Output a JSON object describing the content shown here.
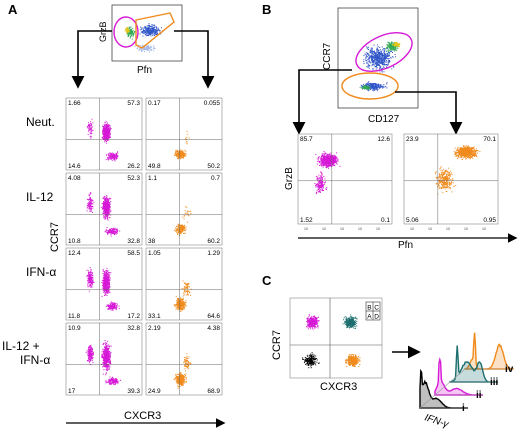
{
  "panels": {
    "A": {
      "label": "A",
      "gate_plot": {
        "ylabel": "GrzB",
        "xlabel": "Pfn"
      },
      "row_labels": [
        "Neut.",
        "IL-12",
        "IFN-α",
        "IL-12 +",
        "IFN-α"
      ],
      "axis_ylabel": "CCR7",
      "axis_xlabel": "CXCR3",
      "magenta_quadrants": [
        [
          "1.66",
          "57.3",
          "14.6",
          "26.2"
        ],
        [
          "4.08",
          "52.3",
          "10.8",
          "32.8"
        ],
        [
          "12.4",
          "58.5",
          "11.8",
          "17.2"
        ],
        [
          "10.9",
          "32.8",
          "17",
          "39.3"
        ]
      ],
      "orange_quadrants": [
        [
          "0.17",
          "0.055",
          "49.8",
          "50.2"
        ],
        [
          "1.1",
          "0.7",
          "38",
          "60.2"
        ],
        [
          "1.05",
          "1.29",
          "33.1",
          "64.6"
        ],
        [
          "2.19",
          "4.38",
          "24.9",
          "68.9"
        ]
      ],
      "colors": {
        "magenta": "#d61ad6",
        "orange": "#f08a1c"
      }
    },
    "B": {
      "label": "B",
      "gate_plot": {
        "ylabel": "CCR7",
        "xlabel": "CD127"
      },
      "sub_ylabel": "GrzB",
      "sub_xlabel": "Pfn",
      "magenta_quadrants": [
        "85.7",
        "12.6",
        "1.52",
        "0.1"
      ],
      "orange_quadrants": [
        "23.9",
        "70.1",
        "5.06",
        "0.95"
      ],
      "ticks": [
        "10",
        "10",
        "10",
        "10",
        "10"
      ]
    },
    "C": {
      "label": "C",
      "ylabel": "CCR7",
      "xlabel": "CXCR3",
      "quadrant_letters": [
        "B",
        "C",
        "A",
        "D"
      ],
      "histogram_xlabel": "IFN-γ",
      "histogram_labels": [
        "iv",
        "iii",
        "ii",
        "i"
      ],
      "colors": {
        "A": "#000000",
        "B": "#d61ad6",
        "C": "#1d6e6e",
        "D": "#f08a1c"
      }
    }
  }
}
